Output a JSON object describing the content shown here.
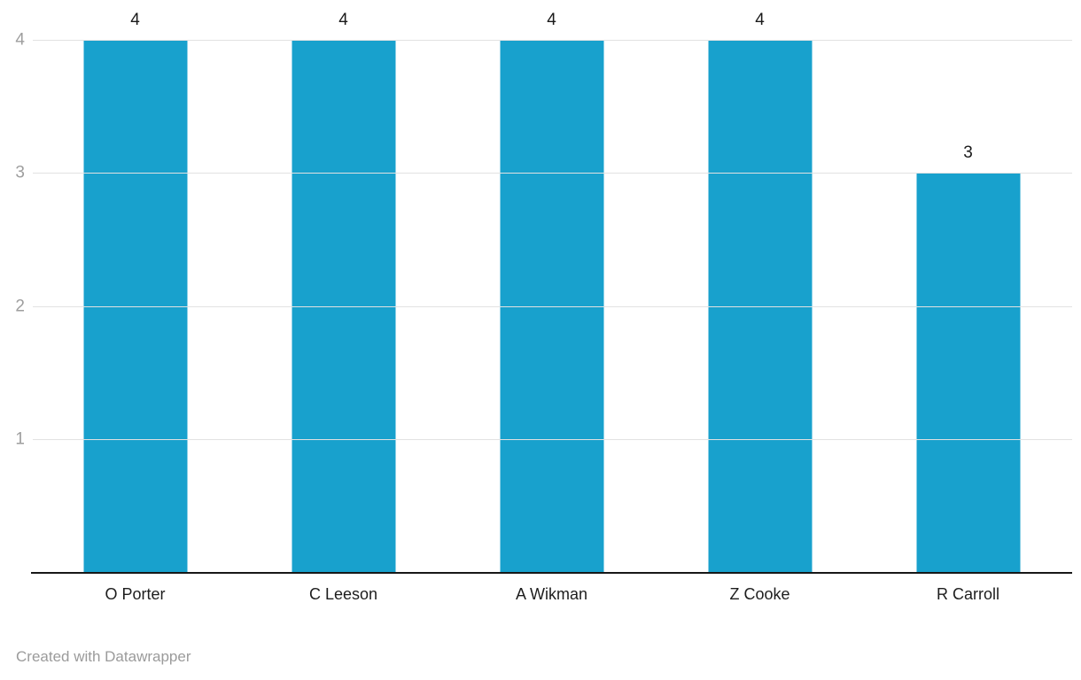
{
  "chart_data": {
    "type": "bar",
    "categories": [
      "O Porter",
      "C Leeson",
      "A Wikman",
      "Z Cooke",
      "R Carroll"
    ],
    "values": [
      4,
      4,
      4,
      4,
      3
    ],
    "value_labels": [
      "4",
      "4",
      "4",
      "4",
      "3"
    ],
    "title": "",
    "xlabel": "",
    "ylabel": "",
    "ylim": [
      0,
      4
    ],
    "yticks": [
      1,
      2,
      3,
      4
    ],
    "grid": true,
    "legend": "none",
    "bar_color": "#18a1cd"
  },
  "colors": {
    "bar": "#18a1cd",
    "gridline": "#e2e2e2",
    "tick_label": "#9e9e9e",
    "axis_line": "#171717",
    "category_label": "#1d1d1d",
    "value_label": "#1a1a1a",
    "footer_text": "#9b9b9b",
    "background": "#ffffff"
  },
  "footer": {
    "attribution": "Created with Datawrapper"
  }
}
